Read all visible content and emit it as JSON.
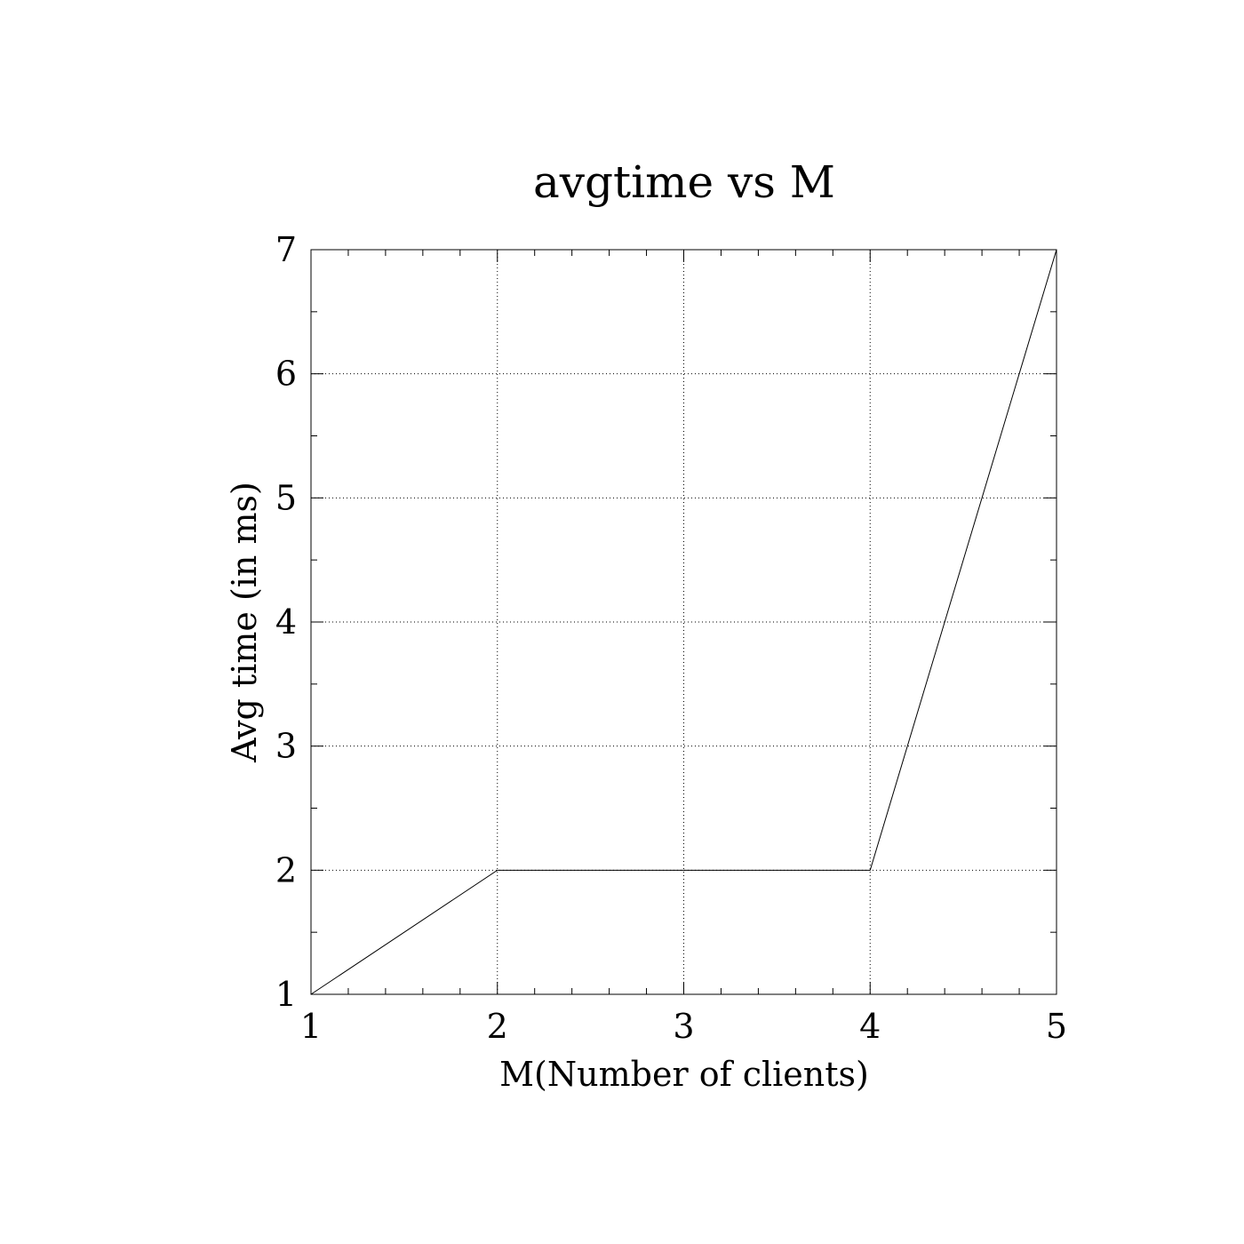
{
  "chart_data": {
    "type": "line",
    "title": "avgtime vs M",
    "xlabel": "M(Number of clients)",
    "ylabel": "Avg time (in ms)",
    "xlim": [
      1,
      5
    ],
    "ylim": [
      1,
      7
    ],
    "x_ticks": [
      1,
      2,
      3,
      4,
      5
    ],
    "y_ticks": [
      1,
      2,
      3,
      4,
      5,
      6,
      7
    ],
    "x_minor_step": 0.2,
    "y_minor_step": 0.5,
    "grid": true,
    "grid_style": "dotted",
    "legend": "none",
    "series": [
      {
        "x": [
          1,
          2,
          3,
          4,
          5
        ],
        "y": [
          1,
          2,
          2,
          2,
          7
        ],
        "color": "#000000"
      }
    ]
  }
}
